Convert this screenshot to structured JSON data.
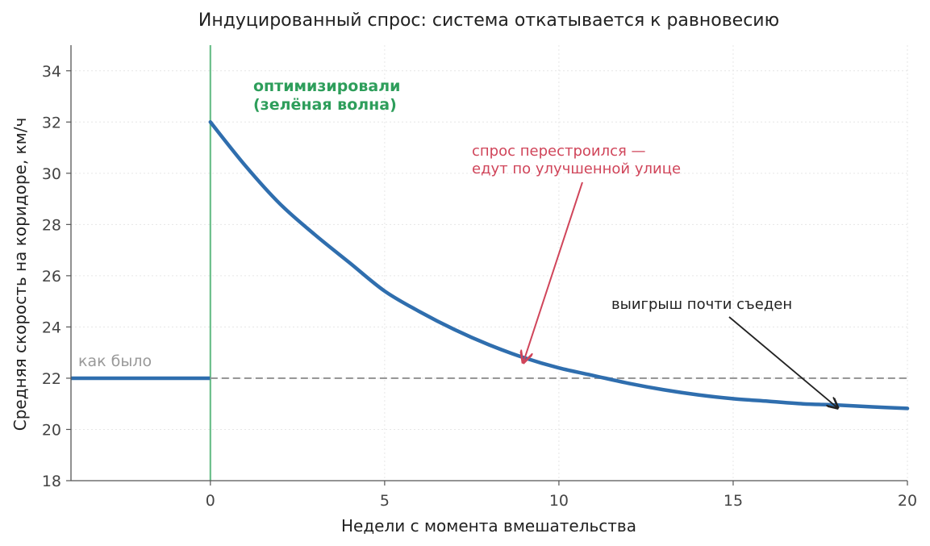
{
  "chart_data": {
    "type": "line",
    "title": "Индуцированный спрос: система откатывается к равновесию",
    "xlabel": "Недели с момента вмешательства",
    "ylabel": "Средняя скорость на коридоре, км/ч",
    "xlim": [
      -4,
      20
    ],
    "ylim": [
      18,
      35
    ],
    "xticks": [
      0,
      5,
      10,
      15,
      20
    ],
    "yticks": [
      18,
      20,
      22,
      24,
      26,
      28,
      30,
      32,
      34
    ],
    "grid": true,
    "series": [
      {
        "color": "#2f6eae",
        "points": [
          [
            -4,
            22
          ],
          [
            -0.01,
            22
          ],
          [
            0,
            32
          ],
          [
            1,
            30.3
          ],
          [
            2,
            28.8
          ],
          [
            3,
            27.6
          ],
          [
            4,
            26.5
          ],
          [
            5,
            25.4
          ],
          [
            6,
            24.6
          ],
          [
            7,
            23.9
          ],
          [
            8,
            23.3
          ],
          [
            9,
            22.8
          ],
          [
            10,
            22.4
          ],
          [
            11,
            22.1
          ],
          [
            12,
            21.8
          ],
          [
            13,
            21.55
          ],
          [
            14,
            21.35
          ],
          [
            15,
            21.2
          ],
          [
            16,
            21.1
          ],
          [
            17,
            21.0
          ],
          [
            18,
            20.95
          ],
          [
            19,
            20.88
          ],
          [
            20,
            20.82
          ]
        ]
      }
    ],
    "baseline": {
      "y": 22,
      "color": "#999999",
      "label": "как было"
    },
    "intervention": {
      "x": 0,
      "color": "#6bbf8a"
    },
    "annotations": [
      {
        "text_lines": [
          "оптимизировали",
          "(зелёная волна)"
        ],
        "color": "#2e9e5b",
        "bold": true
      },
      {
        "text_lines": [
          "спрос перестроился —",
          "едут по улучшенной улице"
        ],
        "color": "#d0455a",
        "arrow_to": [
          9,
          22.8
        ]
      },
      {
        "text_lines": [
          "выигрыш почти съеден"
        ],
        "color": "#222222",
        "arrow_to": [
          18,
          20.9
        ]
      }
    ]
  }
}
